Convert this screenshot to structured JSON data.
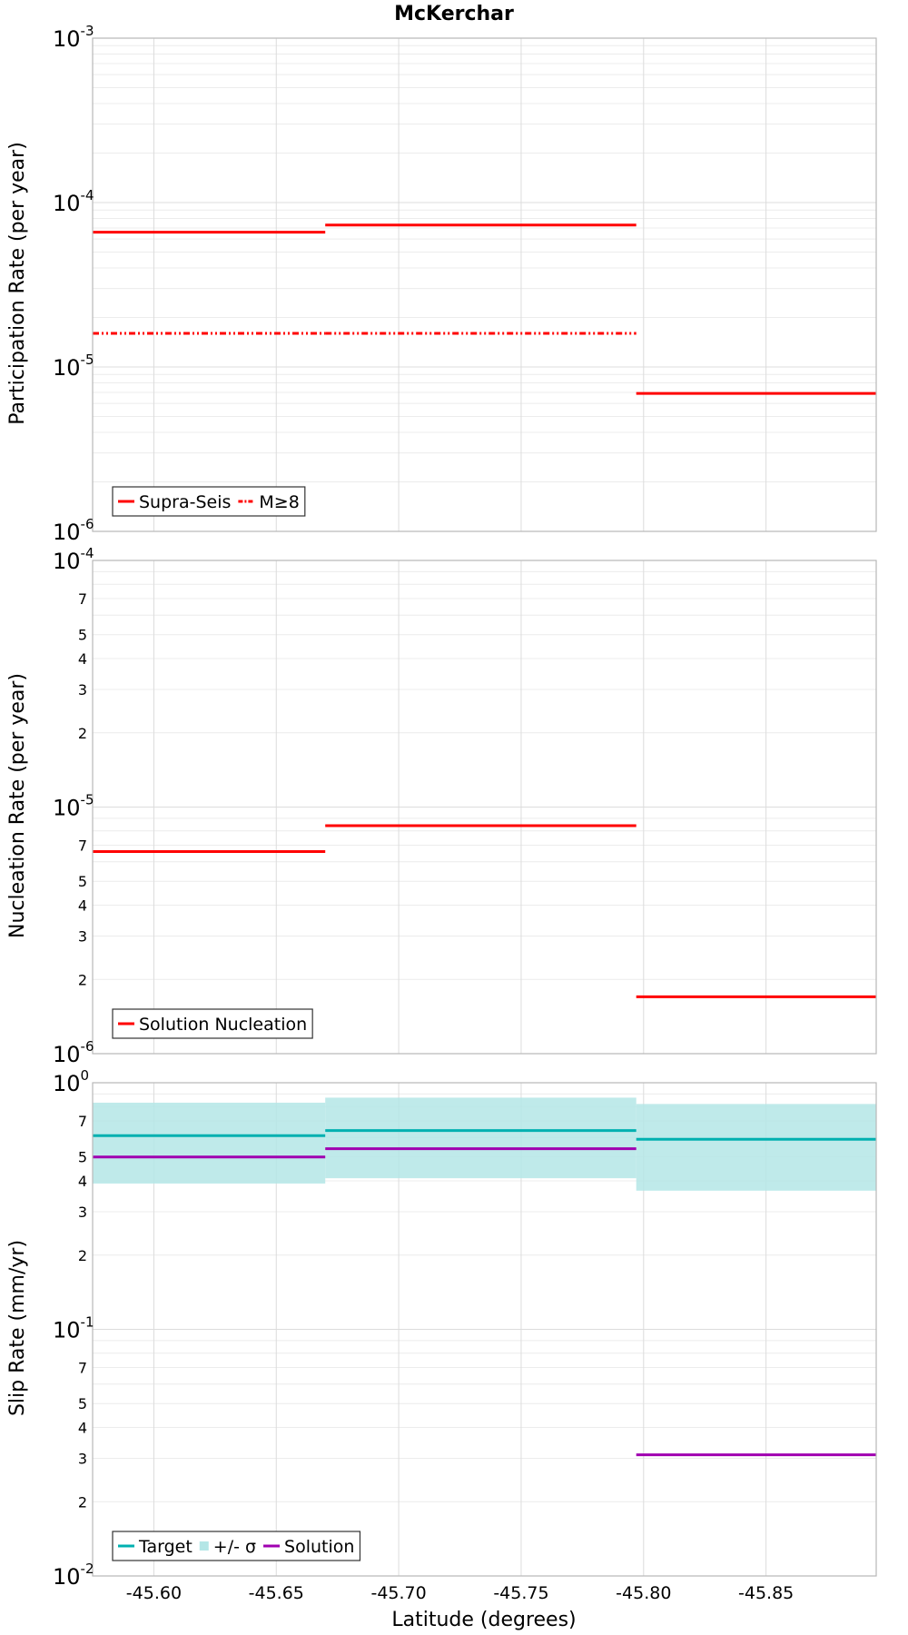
{
  "chart_data": {
    "title": "McKerchar",
    "xlabel": "Latitude (degrees)",
    "xlim": [
      -45.575,
      -45.895
    ],
    "x_ticks": [
      "-45.60",
      "-45.65",
      "-45.70",
      "-45.75",
      "-45.80",
      "-45.85"
    ],
    "x_tick_values": [
      -45.6,
      -45.65,
      -45.7,
      -45.75,
      -45.8,
      -45.85
    ],
    "panels": [
      {
        "type": "line",
        "ylabel": "Participation Rate (per year)",
        "yscale": "log",
        "ylim": [
          1e-06,
          0.001
        ],
        "major_ticks": [
          {
            "base": "10",
            "exp": "-6",
            "value": 1e-06
          },
          {
            "base": "10",
            "exp": "-5",
            "value": 1e-05
          },
          {
            "base": "10",
            "exp": "-4",
            "value": 0.0001
          },
          {
            "base": "10",
            "exp": "-3",
            "value": 0.001
          }
        ],
        "minor_tick_labels": [],
        "legend": {
          "placement": "bottom-left",
          "entries": [
            {
              "label": "Supra-Seis",
              "color": "#ff0000",
              "style": "solid"
            },
            {
              "label": "M≥8",
              "color": "#ff0000",
              "style": "dashdot"
            }
          ]
        },
        "series": [
          {
            "name": "Supra-Seis",
            "color": "#ff0000",
            "style": "solid",
            "segments": [
              {
                "x": [
                  -45.575,
                  -45.67
                ],
                "y": 6.6e-05
              },
              {
                "x": [
                  -45.67,
                  -45.797
                ],
                "y": 7.3e-05
              },
              {
                "x": [
                  -45.797,
                  -45.895
                ],
                "y": 6.9e-06
              }
            ]
          },
          {
            "name": "M≥8",
            "color": "#ff0000",
            "style": "dashdot",
            "segments": [
              {
                "x": [
                  -45.575,
                  -45.67
                ],
                "y": 1.6e-05
              },
              {
                "x": [
                  -45.67,
                  -45.797
                ],
                "y": 1.6e-05
              }
            ]
          }
        ]
      },
      {
        "type": "line",
        "ylabel": "Nucleation Rate (per year)",
        "yscale": "log",
        "ylim": [
          1e-06,
          0.0001
        ],
        "major_ticks": [
          {
            "base": "10",
            "exp": "-6",
            "value": 1e-06
          },
          {
            "base": "10",
            "exp": "-5",
            "value": 1e-05
          },
          {
            "base": "10",
            "exp": "-4",
            "value": 0.0001
          }
        ],
        "minor_tick_labels": [
          "2",
          "3",
          "4",
          "5",
          "7"
        ],
        "legend": {
          "placement": "bottom-left",
          "entries": [
            {
              "label": "Solution Nucleation",
              "color": "#ff0000",
              "style": "solid"
            }
          ]
        },
        "series": [
          {
            "name": "Solution Nucleation",
            "color": "#ff0000",
            "style": "solid",
            "segments": [
              {
                "x": [
                  -45.575,
                  -45.67
                ],
                "y": 6.6e-06
              },
              {
                "x": [
                  -45.67,
                  -45.797
                ],
                "y": 8.4e-06
              },
              {
                "x": [
                  -45.797,
                  -45.895
                ],
                "y": 1.7e-06
              }
            ]
          }
        ]
      },
      {
        "type": "line",
        "ylabel": "Slip Rate (mm/yr)",
        "yscale": "log",
        "ylim": [
          0.01,
          1
        ],
        "major_ticks": [
          {
            "base": "10",
            "exp": "-2",
            "value": 0.01
          },
          {
            "base": "10",
            "exp": "-1",
            "value": 0.1
          },
          {
            "base": "10",
            "exp": "0",
            "value": 1
          }
        ],
        "minor_tick_labels": [
          "2",
          "3",
          "4",
          "5",
          "7"
        ],
        "legend": {
          "placement": "bottom-left",
          "entries": [
            {
              "label": "Target",
              "color": "#00b0b0",
              "style": "solid"
            },
            {
              "label": "+/- σ",
              "color": "#b4e6e6",
              "style": "band"
            },
            {
              "label": "Solution",
              "color": "#a000b0",
              "style": "solid"
            }
          ]
        },
        "bands": [
          {
            "name": "+/- σ",
            "color": "#b4e6e6",
            "segments": [
              {
                "x": [
                  -45.575,
                  -45.67
                ],
                "low": 0.39,
                "high": 0.83
              },
              {
                "x": [
                  -45.67,
                  -45.797
                ],
                "low": 0.41,
                "high": 0.87
              },
              {
                "x": [
                  -45.797,
                  -45.895
                ],
                "low": 0.365,
                "high": 0.82
              }
            ]
          }
        ],
        "series": [
          {
            "name": "Target",
            "color": "#00b0b0",
            "style": "solid",
            "segments": [
              {
                "x": [
                  -45.575,
                  -45.67
                ],
                "y": 0.61
              },
              {
                "x": [
                  -45.67,
                  -45.797
                ],
                "y": 0.64
              },
              {
                "x": [
                  -45.797,
                  -45.895
                ],
                "y": 0.59
              }
            ]
          },
          {
            "name": "Solution",
            "color": "#a000b0",
            "style": "solid",
            "segments": [
              {
                "x": [
                  -45.575,
                  -45.67
                ],
                "y": 0.5
              },
              {
                "x": [
                  -45.67,
                  -45.797
                ],
                "y": 0.54
              },
              {
                "x": [
                  -45.797,
                  -45.895
                ],
                "y": 0.031
              }
            ]
          }
        ]
      }
    ]
  }
}
